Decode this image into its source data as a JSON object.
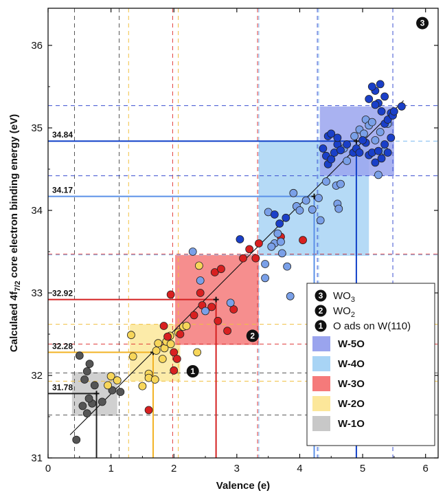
{
  "chart_data": {
    "type": "scatter",
    "ylabel": "Calculaed 4f",
    "ylabel_sub": "7/2",
    "ylabel_tail": " core electron binding energy (eV)",
    "xlabel": "Valence (e)",
    "xlim": [
      0,
      6.2
    ],
    "ylim": [
      31,
      36.45
    ],
    "x_ticks": [
      0,
      1,
      2,
      3,
      4,
      5,
      6
    ],
    "y_ticks": [
      31,
      32,
      33,
      34,
      35,
      36
    ],
    "grid": false,
    "fit_line": {
      "x": [
        0.35,
        5.65
      ],
      "y": [
        31.28,
        35.33
      ]
    },
    "reference_levels": [
      {
        "label": "31.78",
        "value": 31.78,
        "valence": 0.77,
        "color": "#222222"
      },
      {
        "label": "32.28",
        "value": 32.28,
        "valence": 1.67,
        "color": "#f2b324"
      },
      {
        "label": "32.92",
        "value": 32.92,
        "valence": 2.67,
        "color": "#d42020"
      },
      {
        "label": "34.17",
        "value": 34.17,
        "valence": 4.23,
        "color": "#5a90e8"
      },
      {
        "label": "34.84",
        "value": 34.84,
        "valence": 4.9,
        "color": "#1040c8"
      }
    ],
    "boxes": [
      {
        "name": "W-1O",
        "x": [
          0.38,
          1.1
        ],
        "y": [
          31.51,
          32.04
        ],
        "color": "#c8c8c8",
        "vlines": [
          0.42,
          1.13
        ],
        "hlines": [
          31.52,
          32.03
        ]
      },
      {
        "name": "W-2O",
        "x": [
          1.3,
          2.1
        ],
        "y": [
          31.93,
          32.62
        ],
        "color": "#fce79a",
        "vlines": [
          1.28,
          2.07
        ],
        "hlines": [
          31.93,
          32.62
        ]
      },
      {
        "name": "W-3O",
        "x": [
          2.02,
          3.35
        ],
        "y": [
          32.37,
          33.46
        ],
        "color": "#f57a7a",
        "vlines": [
          1.98,
          3.33
        ],
        "hlines": [
          32.38,
          33.47
        ]
      },
      {
        "name": "W-4O",
        "x": [
          3.35,
          5.1
        ],
        "y": [
          33.45,
          34.84
        ],
        "color": "#a8d4f5",
        "vlines": [
          3.35,
          4.3
        ],
        "hlines": [
          33.46,
          34.84
        ]
      },
      {
        "name": "W-5O",
        "x": [
          4.32,
          5.5
        ],
        "y": [
          34.42,
          35.26
        ],
        "color": "#9aa4ee",
        "vlines": [
          4.28,
          5.48
        ],
        "hlines": [
          34.42,
          35.27
        ]
      }
    ],
    "special_markers": [
      {
        "num": "1",
        "x": 2.3,
        "y": 32.05
      },
      {
        "num": "2",
        "x": 3.25,
        "y": 32.48
      },
      {
        "num": "3",
        "x": 5.95,
        "y": 36.27
      }
    ],
    "series": [
      {
        "color": "#555555",
        "points": [
          [
            0.5,
            32.24
          ],
          [
            0.45,
            31.22
          ],
          [
            0.58,
            31.95
          ],
          [
            0.62,
            32.05
          ],
          [
            0.66,
            32.14
          ],
          [
            0.7,
            31.66
          ],
          [
            0.74,
            31.88
          ],
          [
            0.55,
            31.63
          ],
          [
            0.62,
            31.54
          ],
          [
            0.86,
            31.68
          ],
          [
            1.02,
            31.82
          ],
          [
            1.15,
            31.8
          ],
          [
            0.65,
            31.72
          ]
        ]
      },
      {
        "color": "#f7d65a",
        "points": [
          [
            0.95,
            31.88
          ],
          [
            1.0,
            31.99
          ],
          [
            1.1,
            31.94
          ],
          [
            1.32,
            32.49
          ],
          [
            1.35,
            32.23
          ],
          [
            1.5,
            31.87
          ],
          [
            1.6,
            32.02
          ],
          [
            1.6,
            31.97
          ],
          [
            1.7,
            31.95
          ],
          [
            1.72,
            32.3
          ],
          [
            1.75,
            32.39
          ],
          [
            1.82,
            32.2
          ],
          [
            1.85,
            32.33
          ],
          [
            1.88,
            32.41
          ],
          [
            1.94,
            32.48
          ],
          [
            1.95,
            32.38
          ],
          [
            2.07,
            32.52
          ],
          [
            2.15,
            32.59
          ],
          [
            2.2,
            32.6
          ],
          [
            2.37,
            32.28
          ],
          [
            2.4,
            33.33
          ]
        ]
      },
      {
        "color": "#d82020",
        "points": [
          [
            1.6,
            31.58
          ],
          [
            1.84,
            32.6
          ],
          [
            1.9,
            32.47
          ],
          [
            1.95,
            32.98
          ],
          [
            2.0,
            32.28
          ],
          [
            2.0,
            32.06
          ],
          [
            2.05,
            32.2
          ],
          [
            2.1,
            32.5
          ],
          [
            2.32,
            32.73
          ],
          [
            2.42,
            33.0
          ],
          [
            2.45,
            32.85
          ],
          [
            2.6,
            32.83
          ],
          [
            2.7,
            32.66
          ],
          [
            2.65,
            33.25
          ],
          [
            2.75,
            33.29
          ],
          [
            2.85,
            32.54
          ],
          [
            2.95,
            32.8
          ],
          [
            3.1,
            33.42
          ],
          [
            3.2,
            33.53
          ],
          [
            3.3,
            33.42
          ],
          [
            3.35,
            33.6
          ],
          [
            3.7,
            33.68
          ],
          [
            3.95,
            34.05
          ],
          [
            4.05,
            33.64
          ]
        ]
      },
      {
        "color": "#7aa0e8",
        "points": [
          [
            2.3,
            33.5
          ],
          [
            2.42,
            33.15
          ],
          [
            2.5,
            32.78
          ],
          [
            2.9,
            32.88
          ],
          [
            3.45,
            33.35
          ],
          [
            3.45,
            33.18
          ],
          [
            3.6,
            33.6
          ],
          [
            3.7,
            33.62
          ],
          [
            3.72,
            33.48
          ],
          [
            3.8,
            33.32
          ],
          [
            3.85,
            32.96
          ],
          [
            3.9,
            34.21
          ],
          [
            3.95,
            34.05
          ],
          [
            4.0,
            34.0
          ],
          [
            4.1,
            34.12
          ],
          [
            4.2,
            34.01
          ],
          [
            4.3,
            34.15
          ],
          [
            4.33,
            33.88
          ],
          [
            4.42,
            34.35
          ],
          [
            4.6,
            34.08
          ],
          [
            4.62,
            34.02
          ],
          [
            4.58,
            34.3
          ],
          [
            4.65,
            34.32
          ],
          [
            4.7,
            34.75
          ],
          [
            4.75,
            34.6
          ],
          [
            4.87,
            34.9
          ],
          [
            4.95,
            34.98
          ],
          [
            5.02,
            34.93
          ],
          [
            5.05,
            35.1
          ],
          [
            5.1,
            35.03
          ],
          [
            5.15,
            35.07
          ],
          [
            5.2,
            34.85
          ],
          [
            5.28,
            34.95
          ],
          [
            5.35,
            34.72
          ],
          [
            5.4,
            35.05
          ],
          [
            5.25,
            34.43
          ],
          [
            3.55,
            33.56
          ],
          [
            3.65,
            33.72
          ],
          [
            3.5,
            33.98
          ]
        ]
      },
      {
        "color": "#1a3fc8",
        "points": [
          [
            3.05,
            33.65
          ],
          [
            3.6,
            33.95
          ],
          [
            3.68,
            33.84
          ],
          [
            3.78,
            33.91
          ],
          [
            4.37,
            34.75
          ],
          [
            4.42,
            34.66
          ],
          [
            4.45,
            34.56
          ],
          [
            4.5,
            34.62
          ],
          [
            4.55,
            34.7
          ],
          [
            4.6,
            34.8
          ],
          [
            4.45,
            34.9
          ],
          [
            4.5,
            34.93
          ],
          [
            4.6,
            34.88
          ],
          [
            4.65,
            34.73
          ],
          [
            4.75,
            34.8
          ],
          [
            4.85,
            34.7
          ],
          [
            4.9,
            34.75
          ],
          [
            4.95,
            34.7
          ],
          [
            5.05,
            34.82
          ],
          [
            5.1,
            34.67
          ],
          [
            5.15,
            34.7
          ],
          [
            5.2,
            34.58
          ],
          [
            5.25,
            34.72
          ],
          [
            5.3,
            34.63
          ],
          [
            5.35,
            34.8
          ],
          [
            5.4,
            34.7
          ],
          [
            5.45,
            34.88
          ],
          [
            5.35,
            35.05
          ],
          [
            5.4,
            35.1
          ],
          [
            5.45,
            35.18
          ],
          [
            5.3,
            35.2
          ],
          [
            5.25,
            35.3
          ],
          [
            5.2,
            35.45
          ],
          [
            5.28,
            35.53
          ],
          [
            5.35,
            35.38
          ],
          [
            5.15,
            35.5
          ],
          [
            5.1,
            35.35
          ],
          [
            5.2,
            35.28
          ],
          [
            5.62,
            35.26
          ],
          [
            5.48,
            35.15
          ],
          [
            5.5,
            35.2
          ],
          [
            5.0,
            34.85
          ]
        ]
      }
    ],
    "legend": {
      "placement": "bottom-right",
      "items": [
        {
          "kind": "marker",
          "num": "3",
          "label": "WO",
          "sub": "3"
        },
        {
          "kind": "marker",
          "num": "2",
          "label": "WO",
          "sub": "2"
        },
        {
          "kind": "marker",
          "num": "1",
          "label": "O ads on W(110)",
          "sub": ""
        },
        {
          "kind": "swatch",
          "color": "#9aa4ee",
          "label": "W-5O"
        },
        {
          "kind": "swatch",
          "color": "#a8d4f5",
          "label": "W-4O"
        },
        {
          "kind": "swatch",
          "color": "#f57a7a",
          "label": "W-3O"
        },
        {
          "kind": "swatch",
          "color": "#fce79a",
          "label": "W-2O"
        },
        {
          "kind": "swatch",
          "color": "#c8c8c8",
          "label": "W-1O"
        }
      ]
    }
  }
}
